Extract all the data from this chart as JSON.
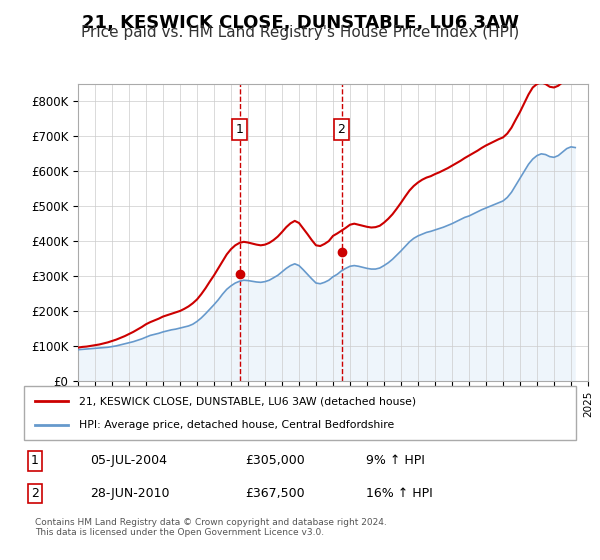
{
  "title": "21, KESWICK CLOSE, DUNSTABLE, LU6 3AW",
  "subtitle": "Price paid vs. HM Land Registry's House Price Index (HPI)",
  "title_fontsize": 13,
  "subtitle_fontsize": 11,
  "background_color": "#ffffff",
  "plot_bg_color": "#ffffff",
  "grid_color": "#cccccc",
  "legend1_label": "21, KESWICK CLOSE, DUNSTABLE, LU6 3AW (detached house)",
  "legend2_label": "HPI: Average price, detached house, Central Bedfordshire",
  "line1_color": "#cc0000",
  "line2_color": "#6699cc",
  "line2_fill_color": "#d0e4f5",
  "marker_color": "#cc0000",
  "sale1_date": "05-JUL-2004",
  "sale1_price": "£305,000",
  "sale1_pct": "9% ↑ HPI",
  "sale2_date": "28-JUN-2010",
  "sale2_price": "£367,500",
  "sale2_pct": "16% ↑ HPI",
  "footer": "Contains HM Land Registry data © Crown copyright and database right 2024.\nThis data is licensed under the Open Government Licence v3.0.",
  "ylim": [
    0,
    850000
  ],
  "yticks": [
    0,
    100000,
    200000,
    300000,
    400000,
    500000,
    600000,
    700000,
    800000
  ],
  "ytick_labels": [
    "£0",
    "£100K",
    "£200K",
    "£300K",
    "£400K",
    "£500K",
    "£600K",
    "£700K",
    "£800K"
  ],
  "sale1_x": 2004.5,
  "sale2_x": 2010.5,
  "sale1_y": 305000,
  "sale2_y": 367500,
  "xmin": 1995,
  "xmax": 2025,
  "hpi_years": [
    1995,
    1995.25,
    1995.5,
    1995.75,
    1996,
    1996.25,
    1996.5,
    1996.75,
    1997,
    1997.25,
    1997.5,
    1997.75,
    1998,
    1998.25,
    1998.5,
    1998.75,
    1999,
    1999.25,
    1999.5,
    1999.75,
    2000,
    2000.25,
    2000.5,
    2000.75,
    2001,
    2001.25,
    2001.5,
    2001.75,
    2002,
    2002.25,
    2002.5,
    2002.75,
    2003,
    2003.25,
    2003.5,
    2003.75,
    2004,
    2004.25,
    2004.5,
    2004.75,
    2005,
    2005.25,
    2005.5,
    2005.75,
    2006,
    2006.25,
    2006.5,
    2006.75,
    2007,
    2007.25,
    2007.5,
    2007.75,
    2008,
    2008.25,
    2008.5,
    2008.75,
    2009,
    2009.25,
    2009.5,
    2009.75,
    2010,
    2010.25,
    2010.5,
    2010.75,
    2011,
    2011.25,
    2011.5,
    2011.75,
    2012,
    2012.25,
    2012.5,
    2012.75,
    2013,
    2013.25,
    2013.5,
    2013.75,
    2014,
    2014.25,
    2014.5,
    2014.75,
    2015,
    2015.25,
    2015.5,
    2015.75,
    2016,
    2016.25,
    2016.5,
    2016.75,
    2017,
    2017.25,
    2017.5,
    2017.75,
    2018,
    2018.25,
    2018.5,
    2018.75,
    2019,
    2019.25,
    2019.5,
    2019.75,
    2020,
    2020.25,
    2020.5,
    2020.75,
    2021,
    2021.25,
    2021.5,
    2021.75,
    2022,
    2022.25,
    2022.5,
    2022.75,
    2023,
    2023.25,
    2023.5,
    2023.75,
    2024,
    2024.25
  ],
  "hpi_values": [
    89000,
    90000,
    91000,
    92000,
    93000,
    94000,
    95000,
    96000,
    98000,
    100000,
    103000,
    106000,
    109000,
    112000,
    116000,
    120000,
    125000,
    130000,
    133000,
    136000,
    140000,
    143000,
    146000,
    148000,
    151000,
    154000,
    157000,
    162000,
    170000,
    180000,
    192000,
    205000,
    218000,
    232000,
    248000,
    262000,
    272000,
    280000,
    285000,
    288000,
    287000,
    285000,
    283000,
    282000,
    284000,
    288000,
    295000,
    302000,
    312000,
    322000,
    330000,
    335000,
    330000,
    318000,
    305000,
    292000,
    280000,
    278000,
    282000,
    288000,
    298000,
    305000,
    315000,
    322000,
    328000,
    330000,
    328000,
    325000,
    322000,
    320000,
    320000,
    323000,
    330000,
    338000,
    348000,
    360000,
    372000,
    385000,
    398000,
    408000,
    415000,
    420000,
    425000,
    428000,
    432000,
    436000,
    440000,
    445000,
    450000,
    456000,
    462000,
    468000,
    472000,
    478000,
    484000,
    490000,
    495000,
    500000,
    505000,
    510000,
    515000,
    525000,
    540000,
    560000,
    580000,
    600000,
    620000,
    635000,
    645000,
    650000,
    648000,
    642000,
    640000,
    645000,
    655000,
    665000,
    670000,
    668000
  ],
  "red_years": [
    1995,
    1995.25,
    1995.5,
    1995.75,
    1996,
    1996.25,
    1996.5,
    1996.75,
    1997,
    1997.25,
    1997.5,
    1997.75,
    1998,
    1998.25,
    1998.5,
    1998.75,
    1999,
    1999.25,
    1999.5,
    1999.75,
    2000,
    2000.25,
    2000.5,
    2000.75,
    2001,
    2001.25,
    2001.5,
    2001.75,
    2002,
    2002.25,
    2002.5,
    2002.75,
    2003,
    2003.25,
    2003.5,
    2003.75,
    2004,
    2004.25,
    2004.5,
    2004.75,
    2005,
    2005.25,
    2005.5,
    2005.75,
    2006,
    2006.25,
    2006.5,
    2006.75,
    2007,
    2007.25,
    2007.5,
    2007.75,
    2008,
    2008.25,
    2008.5,
    2008.75,
    2009,
    2009.25,
    2009.5,
    2009.75,
    2010,
    2010.25,
    2010.5,
    2010.75,
    2011,
    2011.25,
    2011.5,
    2011.75,
    2012,
    2012.25,
    2012.5,
    2012.75,
    2013,
    2013.25,
    2013.5,
    2013.75,
    2014,
    2014.25,
    2014.5,
    2014.75,
    2015,
    2015.25,
    2015.5,
    2015.75,
    2016,
    2016.25,
    2016.5,
    2016.75,
    2017,
    2017.25,
    2017.5,
    2017.75,
    2018,
    2018.25,
    2018.5,
    2018.75,
    2019,
    2019.25,
    2019.5,
    2019.75,
    2020,
    2020.25,
    2020.5,
    2020.75,
    2021,
    2021.25,
    2021.5,
    2021.75,
    2022,
    2022.25,
    2022.5,
    2022.75,
    2023,
    2023.25,
    2023.5,
    2023.75,
    2024,
    2024.25
  ],
  "red_values": [
    95000,
    97000,
    98000,
    100000,
    102000,
    104000,
    107000,
    110000,
    114000,
    118000,
    123000,
    128000,
    134000,
    140000,
    147000,
    154000,
    162000,
    168000,
    173000,
    178000,
    184000,
    188000,
    192000,
    196000,
    200000,
    206000,
    213000,
    222000,
    233000,
    248000,
    265000,
    284000,
    302000,
    322000,
    342000,
    362000,
    377000,
    388000,
    395000,
    398000,
    396000,
    393000,
    390000,
    388000,
    390000,
    395000,
    403000,
    413000,
    426000,
    440000,
    451000,
    458000,
    452000,
    436000,
    420000,
    403000,
    388000,
    386000,
    392000,
    400000,
    415000,
    422000,
    430000,
    438000,
    447000,
    450000,
    447000,
    444000,
    441000,
    439000,
    440000,
    444000,
    453000,
    464000,
    477000,
    493000,
    510000,
    528000,
    545000,
    558000,
    568000,
    576000,
    582000,
    586000,
    592000,
    597000,
    603000,
    609000,
    616000,
    623000,
    630000,
    638000,
    645000,
    652000,
    659000,
    667000,
    674000,
    680000,
    686000,
    692000,
    697000,
    708000,
    725000,
    748000,
    770000,
    795000,
    820000,
    840000,
    850000,
    855000,
    850000,
    842000,
    840000,
    845000,
    855000,
    868000,
    875000,
    872000
  ]
}
